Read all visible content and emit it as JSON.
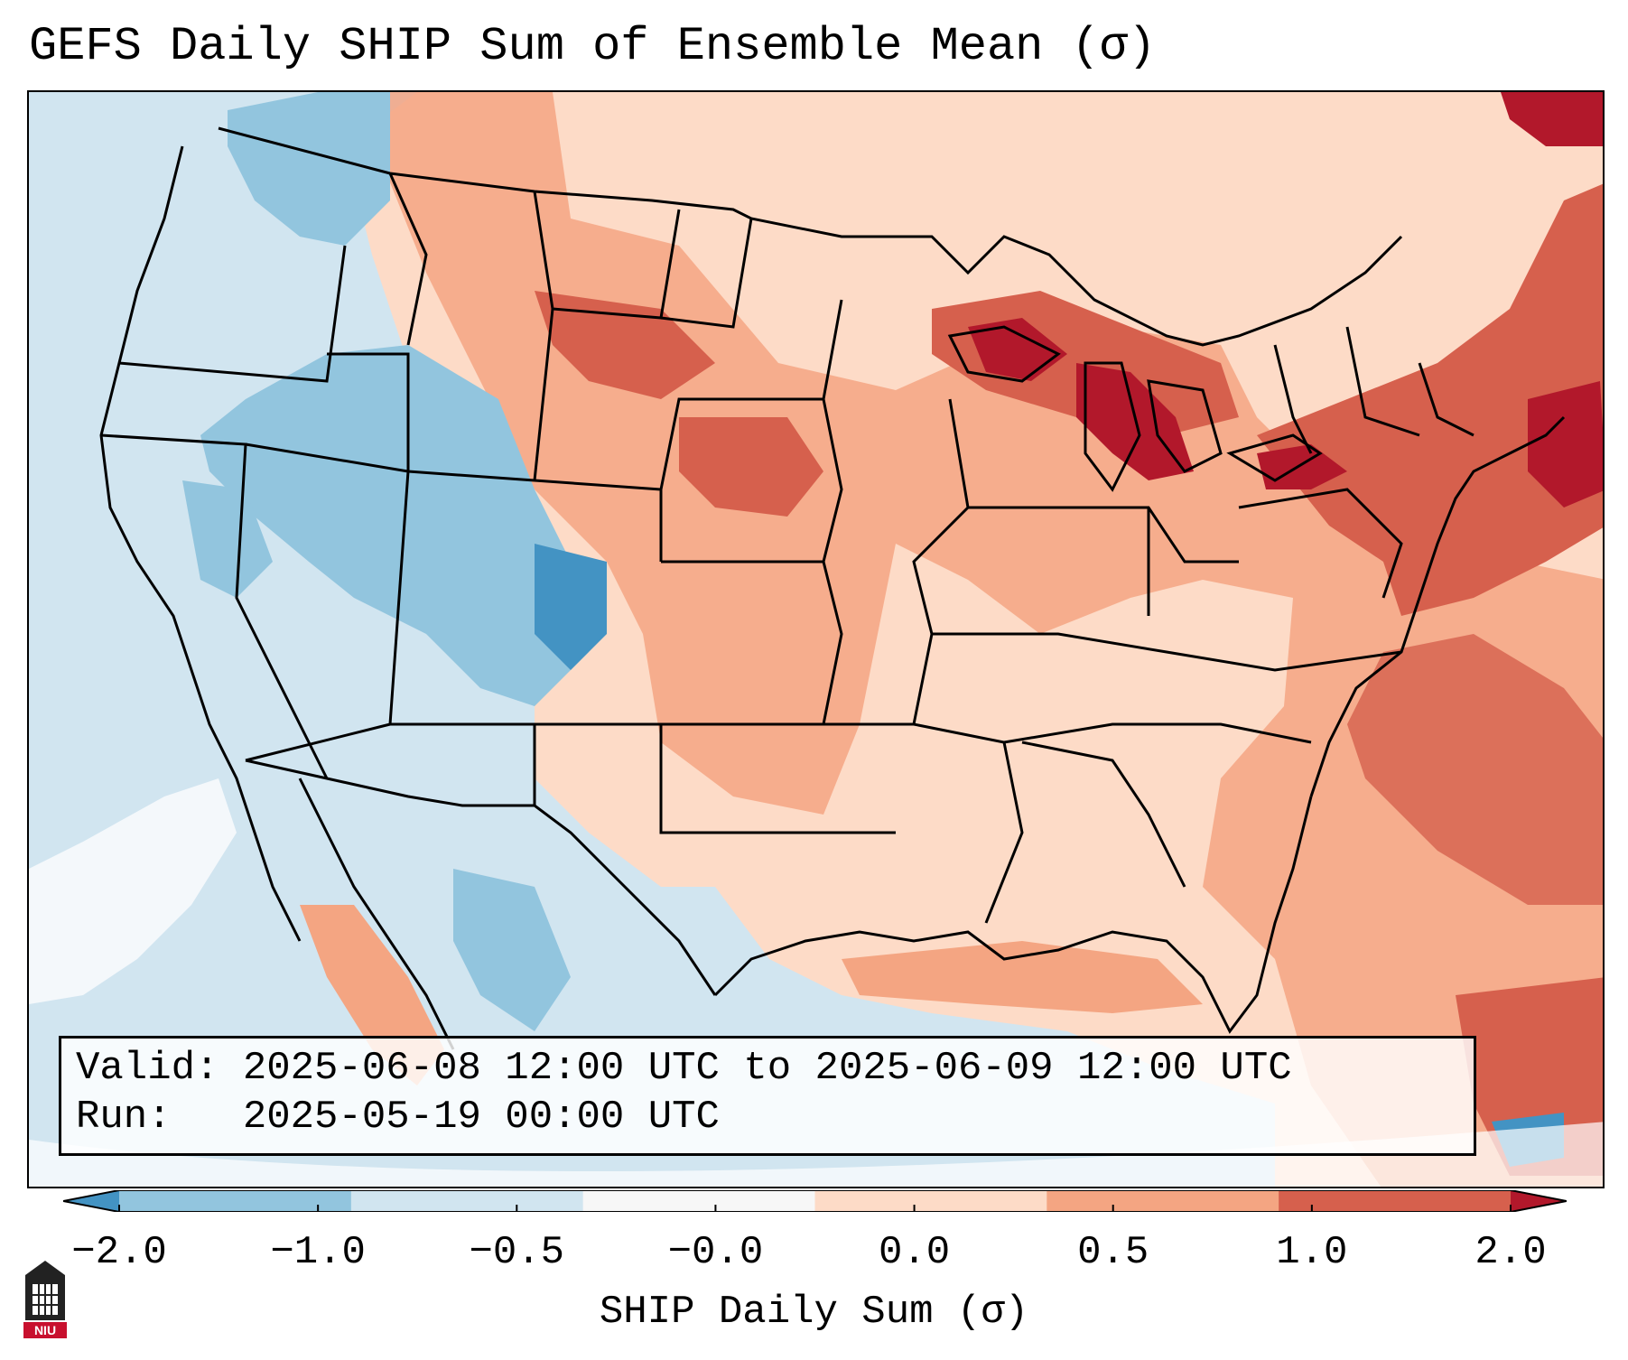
{
  "title": "GEFS Daily SHIP Sum of Ensemble Mean (σ)",
  "info": {
    "valid_label": "Valid:",
    "valid_value": "2025-06-08 12:00 UTC to 2025-06-09 12:00 UTC",
    "run_label": "Run:",
    "run_value": "2025-05-19 00:00 UTC"
  },
  "colorbar": {
    "label": "SHIP Daily Sum (σ)",
    "ticks": [
      "−2.0",
      "−1.0",
      "−0.5",
      "−0.0",
      "0.0",
      "0.5",
      "1.0",
      "2.0"
    ],
    "colors": [
      "#4393c3",
      "#92c5de",
      "#d1e5f0",
      "#f7f7f7",
      "#fddbc7",
      "#f4a582",
      "#d6604d",
      "#b2182b"
    ],
    "extend": "both"
  },
  "logo_text": "NIU"
}
